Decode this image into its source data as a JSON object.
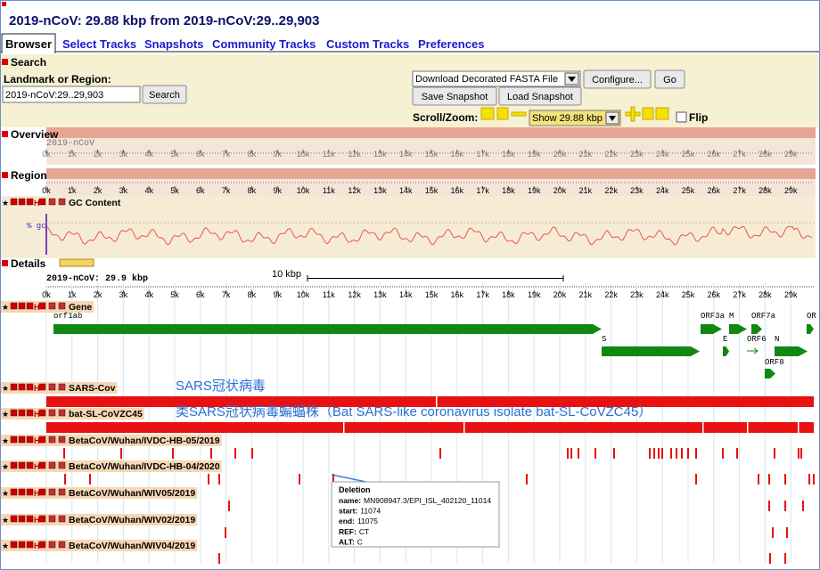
{
  "header": {
    "title": "2019-nCoV: 29.88 kbp from 2019-nCoV:29..29,903"
  },
  "tabs": [
    "Browser",
    "Select Tracks",
    "Snapshots",
    "Community Tracks",
    "Custom Tracks",
    "Preferences"
  ],
  "search": {
    "section": "Search",
    "label": "Landmark or Region:",
    "input": "2019-nCoV:29..29,903",
    "button": "Search",
    "download_select": "Download Decorated FASTA File",
    "configure": "Configure...",
    "go": "Go",
    "save_snapshot": "Save Snapshot",
    "load_snapshot": "Load Snapshot",
    "scroll_zoom": "Scroll/Zoom:",
    "zoom_select": "Show 29.88 kbp",
    "flip": "Flip"
  },
  "overview": {
    "section": "Overview",
    "landmark": "2019-nCoV"
  },
  "region": {
    "section": "Region",
    "track": "GC Content",
    "gc_label": "% gc"
  },
  "ruler_ticks": [
    "0k",
    "1k",
    "2k",
    "3k",
    "4k",
    "5k",
    "6k",
    "7k",
    "8k",
    "9k",
    "10k",
    "11k",
    "12k",
    "13k",
    "14k",
    "15k",
    "16k",
    "17k",
    "18k",
    "19k",
    "20k",
    "21k",
    "22k",
    "23k",
    "24k",
    "25k",
    "26k",
    "27k",
    "28k",
    "29k"
  ],
  "details": {
    "section": "Details",
    "landmark": "2019-nCoV: 29.9 kbp",
    "scale": "10 kbp",
    "gene_track": "Gene",
    "genes": [
      "orf1ab",
      "S",
      "ORF3a",
      "M",
      "ORF7a",
      "OR",
      "E",
      "ORF6",
      "N",
      "ORF8"
    ],
    "tracks": [
      {
        "name": "SARS-Cov",
        "note": "SARS冠状病毒"
      },
      {
        "name": "bat-SL-CoVZC45",
        "note": "类SARS冠状病毒蝙蝠株（Bat SARS-like coronavirus isolate bat-SL-CoVZC45）"
      },
      {
        "name": "BetaCoV/Wuhan/IVDC-HB-05/2019"
      },
      {
        "name": "BetaCoV/Wuhan/IVDC-HB-04/2020"
      },
      {
        "name": "BetaCoV/Wuhan/WIV05/2019"
      },
      {
        "name": "BetaCoV/Wuhan/WIV02/2019"
      },
      {
        "name": "BetaCoV/Wuhan/WIV04/2019"
      }
    ]
  },
  "tooltip": {
    "title": "Deletion",
    "rows": [
      {
        "label": "name:",
        "value": "MN908947.3/EPI_ISL_402120_11014"
      },
      {
        "label": "start:",
        "value": "11074"
      },
      {
        "label": "end:",
        "value": "11075"
      },
      {
        "label": "REF:",
        "value": "CT"
      },
      {
        "label": "ALT:",
        "value": "C"
      }
    ]
  }
}
